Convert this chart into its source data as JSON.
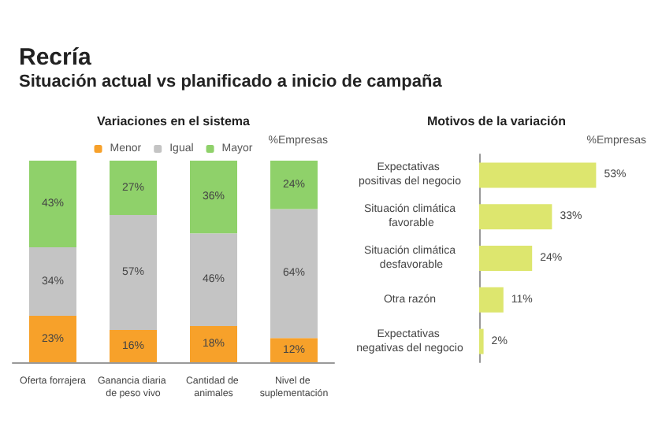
{
  "chart_data": [
    {
      "type": "bar",
      "title": "Variaciones en el sistema",
      "annotations": [
        "Recría",
        "Situación actual vs planificado a inicio de campaña"
      ],
      "ylabel": "%Empresas",
      "categories": [
        "Oferta forrajera",
        "Ganancia diaria de peso vivo",
        "Cantidad de animales",
        "Nivel de suplementación"
      ],
      "stacked": true,
      "legend": "top",
      "series": [
        {
          "name": "Menor",
          "color": "#f7a12a",
          "values": [
            23,
            16,
            18,
            12
          ],
          "value_labels": [
            "23%",
            "16%",
            "18%",
            "12%"
          ]
        },
        {
          "name": "Igual",
          "color": "#c4c4c4",
          "values": [
            34,
            57,
            46,
            64
          ],
          "value_labels": [
            "34%",
            "57%",
            "46%",
            "64%"
          ]
        },
        {
          "name": "Mayor",
          "color": "#8fd16a",
          "values": [
            43,
            27,
            36,
            24
          ],
          "value_labels": [
            "43%",
            "27%",
            "36%",
            "24%"
          ]
        }
      ]
    },
    {
      "type": "bar",
      "orientation": "horizontal",
      "title": "Motivos de la variación",
      "xlabel": "%Empresas",
      "categories": [
        "Expectativas positivas del negocio",
        "Situación climática favorable",
        "Situación climática desfavorable",
        "Otra razón",
        "Expectativas negativas del negocio"
      ],
      "color": "#dde66e",
      "values": [
        53,
        33,
        24,
        11,
        2
      ],
      "value_labels": [
        "53%",
        "33%",
        "24%",
        "11%",
        "2%"
      ]
    }
  ]
}
